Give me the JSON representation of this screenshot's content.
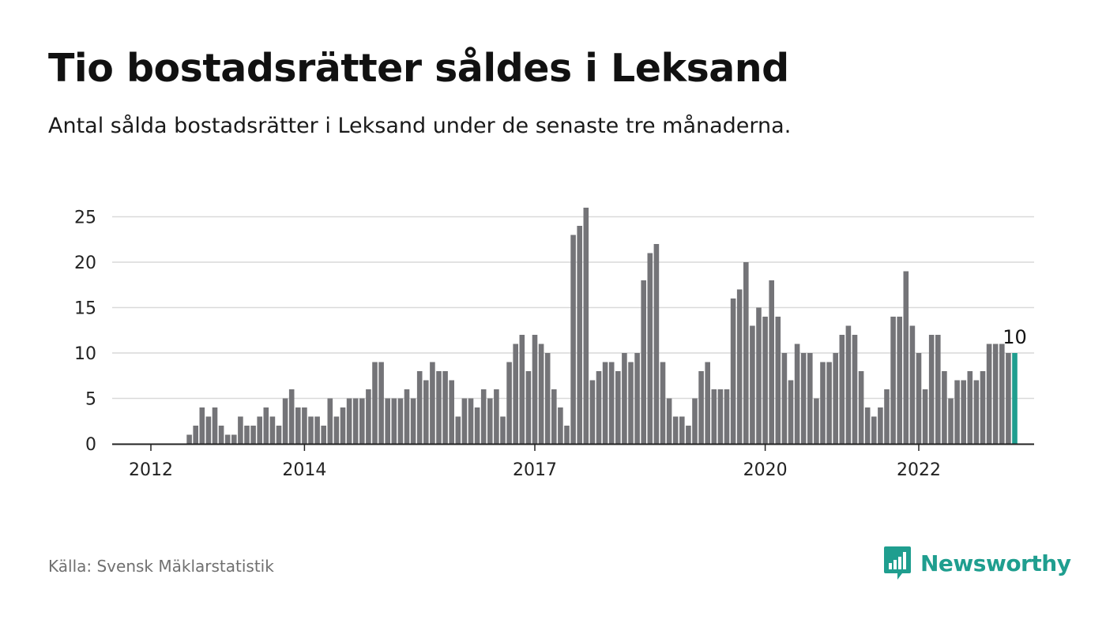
{
  "title": "Tio bostadsrätter såldes i Leksand",
  "subtitle": "Antal sålda bostadsrätter i Leksand under de senaste tre månaderna.",
  "source": "Källa: Svensk Mäklarstatistik",
  "brand": {
    "name": "Newsworthy",
    "logo_icon": "bar-chart-speech-bubble-icon"
  },
  "colors": {
    "bar": "#747478",
    "highlight": "#1f9e8f",
    "grid": "#d9d9d9",
    "axis": "#222222",
    "brand": "#1f9e8f"
  },
  "chart_data": {
    "type": "bar",
    "title": "Tio bostadsrätter såldes i Leksand",
    "subtitle": "Antal sålda bostadsrätter i Leksand under de senaste tre månaderna.",
    "xlabel": "",
    "ylabel": "",
    "ylim": [
      0,
      27
    ],
    "yticks": [
      0,
      5,
      10,
      15,
      20,
      25
    ],
    "grid": true,
    "frequency": "monthly",
    "start_month": "2011-11",
    "x_tick_labels": [
      "2012",
      "2014",
      "2017",
      "2020",
      "2022"
    ],
    "x_tick_months": [
      "2012-01",
      "2014-01",
      "2017-01",
      "2020-01",
      "2022-01"
    ],
    "values": [
      0,
      0,
      0,
      0,
      0,
      0,
      0,
      0,
      1,
      2,
      4,
      3,
      4,
      2,
      1,
      1,
      3,
      2,
      2,
      3,
      4,
      3,
      2,
      5,
      6,
      4,
      4,
      3,
      3,
      2,
      5,
      3,
      4,
      5,
      5,
      5,
      6,
      9,
      9,
      5,
      5,
      5,
      6,
      5,
      8,
      7,
      9,
      8,
      8,
      7,
      3,
      5,
      5,
      4,
      6,
      5,
      6,
      3,
      9,
      11,
      12,
      8,
      12,
      11,
      10,
      6,
      4,
      2,
      23,
      24,
      26,
      7,
      8,
      9,
      9,
      8,
      10,
      9,
      10,
      18,
      21,
      22,
      9,
      5,
      3,
      3,
      2,
      5,
      8,
      9,
      6,
      6,
      6,
      16,
      17,
      20,
      13,
      15,
      14,
      18,
      14,
      10,
      7,
      11,
      10,
      10,
      5,
      9,
      9,
      10,
      12,
      13,
      12,
      8,
      4,
      3,
      4,
      6,
      14,
      14,
      19,
      13,
      10,
      6,
      12,
      12,
      8,
      5,
      7,
      7,
      8,
      7,
      8,
      11,
      11,
      11,
      10,
      10
    ],
    "highlight_last": true,
    "annotations": [
      {
        "text": "10",
        "target": "last-bar"
      }
    ]
  }
}
